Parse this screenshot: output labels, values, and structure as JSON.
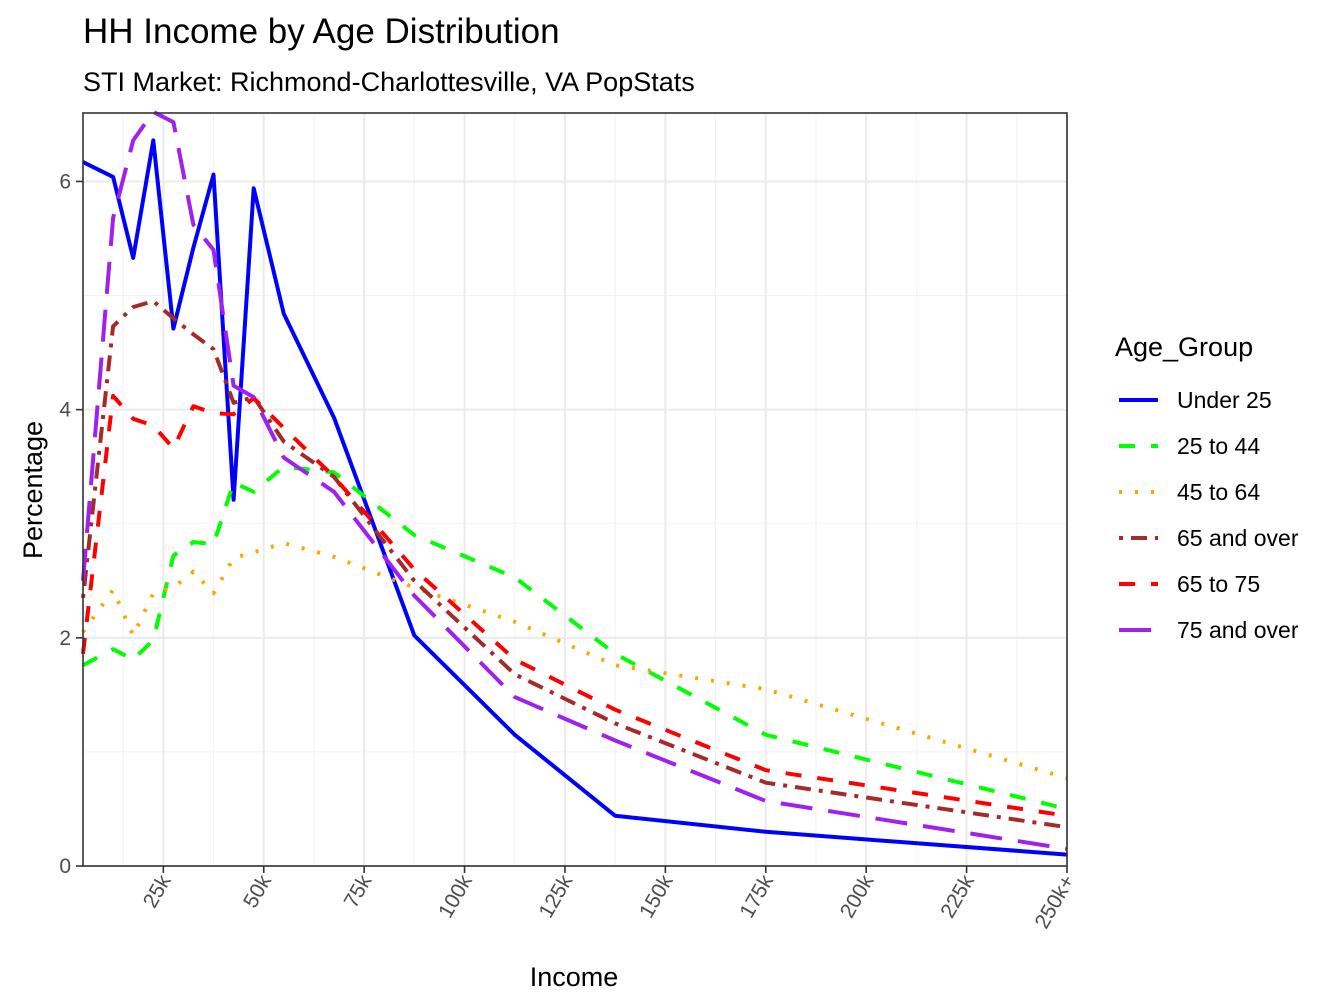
{
  "chart_data": {
    "type": "line",
    "title": "HH Income by Age Distribution",
    "subtitle": "STI Market: Richmond-Charlottesville, VA PopStats",
    "xlabel": "Income",
    "ylabel": "Percentage",
    "xlim": [
      5000,
      250000
    ],
    "ylim": [
      0,
      6.6
    ],
    "x_ticks": [
      {
        "value": 25000,
        "label": "25k"
      },
      {
        "value": 50000,
        "label": "50k"
      },
      {
        "value": 75000,
        "label": "75k"
      },
      {
        "value": 100000,
        "label": "100k"
      },
      {
        "value": 125000,
        "label": "125k"
      },
      {
        "value": 150000,
        "label": "150k"
      },
      {
        "value": 175000,
        "label": "175k"
      },
      {
        "value": 200000,
        "label": "200k"
      },
      {
        "value": 225000,
        "label": "225k"
      },
      {
        "value": 250000,
        "label": "250k+"
      }
    ],
    "y_ticks": [
      {
        "value": 0,
        "label": "0"
      },
      {
        "value": 2,
        "label": "2"
      },
      {
        "value": 4,
        "label": "4"
      },
      {
        "value": 6,
        "label": "6"
      }
    ],
    "x": [
      5000,
      12500,
      17500,
      22500,
      27500,
      32500,
      37500,
      42500,
      47500,
      55000,
      67500,
      87500,
      112500,
      137500,
      175000,
      250000
    ],
    "grid": true,
    "legend": {
      "title": "Age_Group",
      "position": "right"
    },
    "series": [
      {
        "name": "Under 25",
        "color": "#0000FF",
        "dash": "solid",
        "values": [
          6.17,
          6.04,
          5.33,
          6.36,
          4.71,
          5.42,
          6.06,
          3.21,
          5.94,
          4.84,
          3.93,
          2.02,
          1.15,
          0.44,
          0.3,
          0.1
        ]
      },
      {
        "name": "25 to 44",
        "color": "#00FF00",
        "dash": "dashed",
        "values": [
          1.76,
          1.9,
          1.81,
          1.98,
          2.72,
          2.84,
          2.82,
          3.36,
          3.28,
          3.5,
          3.45,
          2.9,
          2.53,
          1.86,
          1.15,
          0.5
        ]
      },
      {
        "name": "45 to 64",
        "color": "#FFA500",
        "dash": "dotted",
        "values": [
          2.05,
          2.42,
          2.02,
          2.39,
          2.44,
          2.58,
          2.39,
          2.7,
          2.75,
          2.83,
          2.71,
          2.44,
          2.14,
          1.76,
          1.55,
          0.77
        ]
      },
      {
        "name": "65 and over",
        "color": "#A52A2A",
        "dash": "dotdash",
        "values": [
          2.35,
          4.73,
          4.9,
          4.95,
          4.8,
          4.66,
          4.53,
          4.06,
          4.11,
          3.72,
          3.41,
          2.5,
          1.68,
          1.25,
          0.73,
          0.34
        ]
      },
      {
        "name": "65 to 75",
        "color": "#FF0000",
        "dash": "dashed",
        "values": [
          1.86,
          4.12,
          3.92,
          3.86,
          3.66,
          4.03,
          3.97,
          3.96,
          4.1,
          3.84,
          3.41,
          2.6,
          1.81,
          1.37,
          0.84,
          0.44
        ]
      },
      {
        "name": "75 and over",
        "color": "#A020F0",
        "dash": "longdash",
        "values": [
          2.5,
          5.68,
          6.36,
          6.61,
          6.52,
          5.62,
          5.4,
          4.21,
          4.11,
          3.58,
          3.28,
          2.37,
          1.48,
          1.1,
          0.57,
          0.15
        ]
      }
    ]
  }
}
